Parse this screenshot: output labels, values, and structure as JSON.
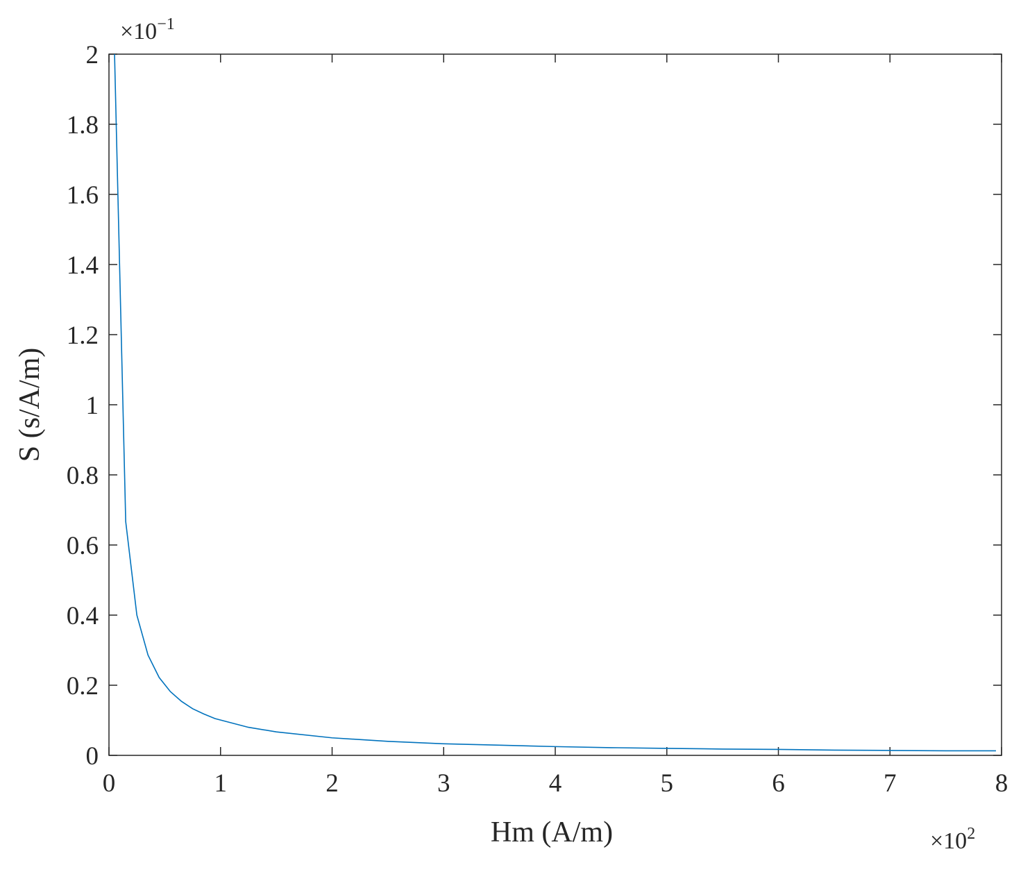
{
  "chart_data": {
    "type": "line",
    "x_label": "Hm (A/m)",
    "y_label": "S (s/A/m)",
    "x_multiplier": {
      "base": "×10",
      "power": "2"
    },
    "y_multiplier": {
      "base": "×10",
      "power": "−1"
    },
    "x": [
      0.05,
      0.15,
      0.25,
      0.35,
      0.45,
      0.55,
      0.65,
      0.75,
      0.85,
      0.95,
      1.25,
      1.5,
      2,
      2.5,
      3,
      3.5,
      4,
      4.5,
      5,
      5.5,
      6,
      6.5,
      7,
      7.5,
      7.95
    ],
    "series": [
      {
        "color": "#0072bd",
        "values": [
          2,
          0.667,
          0.4,
          0.286,
          0.222,
          0.182,
          0.154,
          0.133,
          0.118,
          0.105,
          0.08,
          0.067,
          0.05,
          0.04,
          0.033,
          0.029,
          0.025,
          0.022,
          0.02,
          0.018,
          0.017,
          0.015,
          0.014,
          0.013,
          0.013
        ]
      }
    ],
    "xlim": [
      0,
      8
    ],
    "xticks": [
      0,
      1,
      2,
      3,
      4,
      5,
      6,
      7,
      8
    ],
    "ylim": [
      0,
      2
    ],
    "yticks": [
      0,
      0.2,
      0.4,
      0.6,
      0.8,
      1,
      1.2,
      1.4,
      1.6,
      1.8,
      2
    ],
    "grid": false
  }
}
